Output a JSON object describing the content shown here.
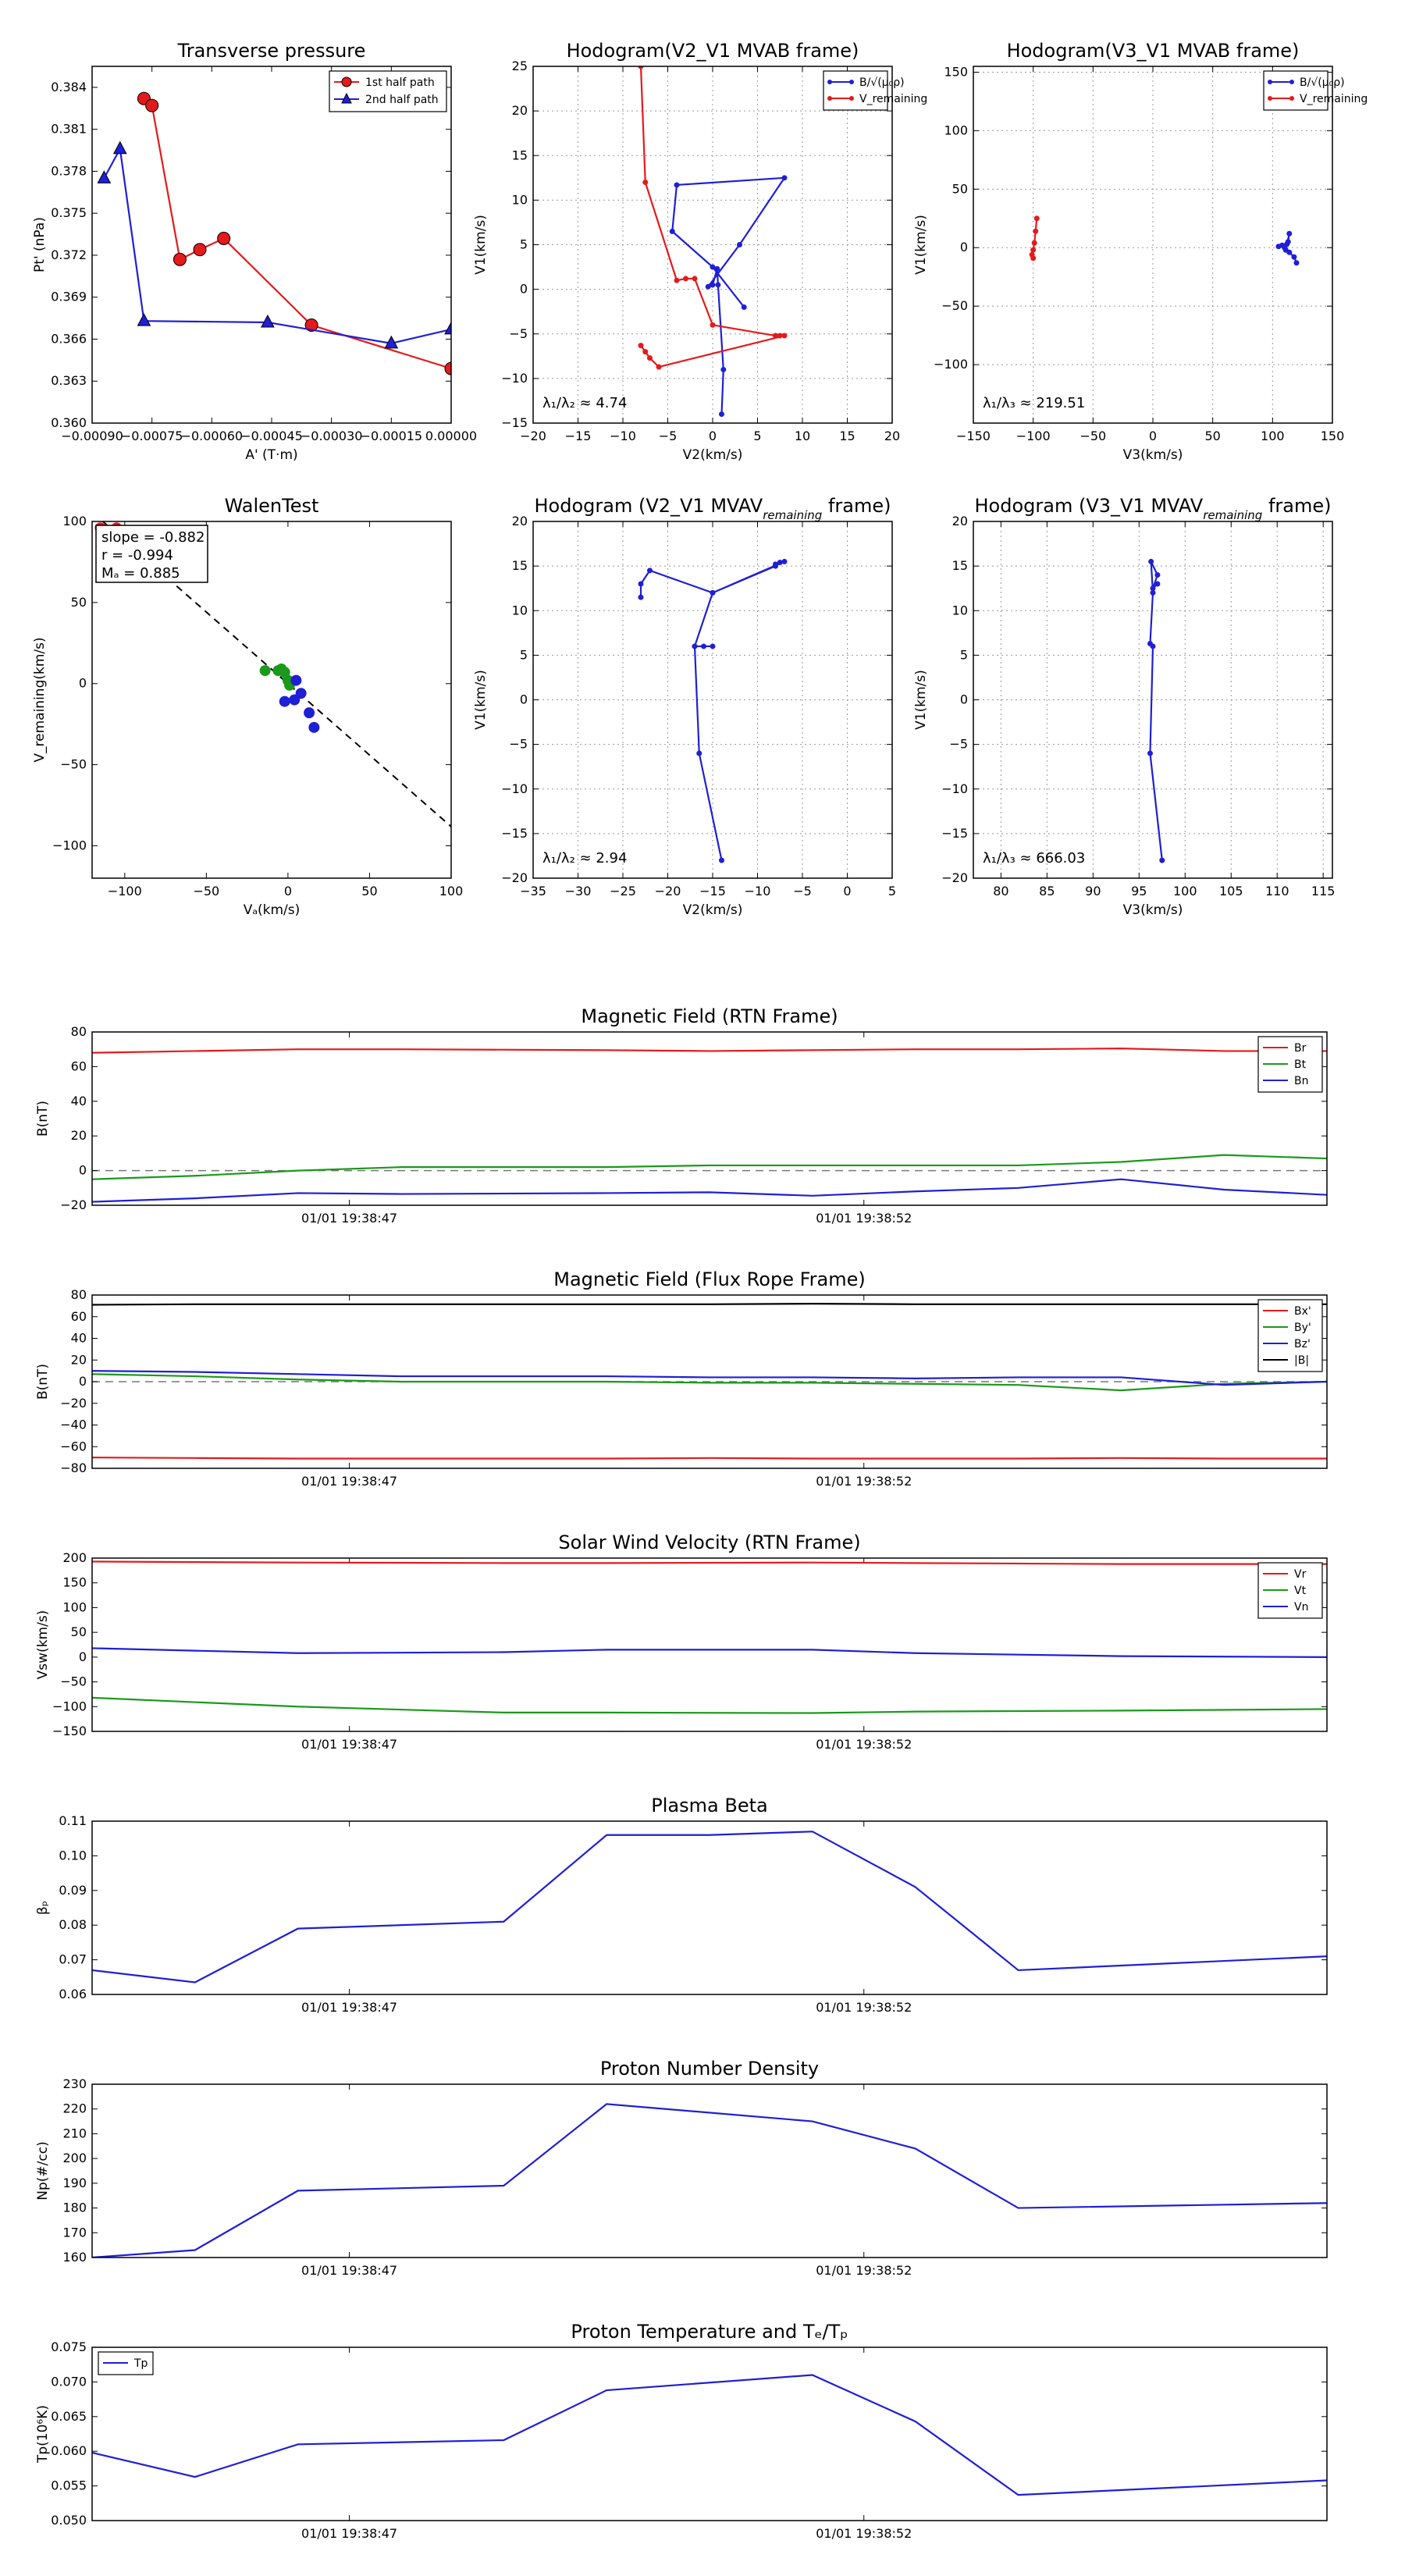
{
  "colors": {
    "red": "#e41a1c",
    "green": "#1a9a1a",
    "blue": "#1f1fd6",
    "black": "#000000",
    "gray": "#888888"
  },
  "chart_data": [
    {
      "type": "line",
      "title": "Transverse pressure",
      "xlabel": "A' (T·m)",
      "ylabel": "Pt' (nPa)",
      "xlim": [
        -0.0009,
        0.0
      ],
      "ylim": [
        0.36,
        0.3855
      ],
      "xticks": [
        -0.0009,
        -0.00075,
        -0.0006,
        -0.00045,
        -0.0003,
        -0.00015,
        0.0
      ],
      "xticklabels": [
        "−0.00090",
        "−0.00075",
        "−0.00060",
        "−0.00045",
        "−0.00030",
        "−0.00015",
        "0.00000"
      ],
      "yticks": [
        0.36,
        0.363,
        0.366,
        0.369,
        0.372,
        0.375,
        0.378,
        0.381,
        0.384
      ],
      "yticklabels": [
        "0.360",
        "0.363",
        "0.366",
        "0.369",
        "0.372",
        "0.375",
        "0.378",
        "0.381",
        "0.384"
      ],
      "grid": false,
      "legend": "upper right",
      "series": [
        {
          "name": "1st half path",
          "marker": "circle",
          "color": "red",
          "x": [
            -0.00077,
            -0.00075,
            -0.00068,
            -0.00063,
            -0.00057,
            -0.00035,
            0.0
          ],
          "y": [
            0.3832,
            0.3827,
            0.3717,
            0.3724,
            0.3732,
            0.367,
            0.3639
          ]
        },
        {
          "name": "2nd half path",
          "marker": "triangle",
          "color": "blue",
          "x": [
            -0.00087,
            -0.00083,
            -0.00077,
            -0.00046,
            -0.00015,
            0.0
          ],
          "y": [
            0.3775,
            0.3796,
            0.3673,
            0.3672,
            0.3657,
            0.3667
          ]
        }
      ]
    },
    {
      "type": "line",
      "title": "Hodogram(V2_V1 MVAB frame)",
      "xlabel": "V2(km/s)",
      "ylabel": "V1(km/s)",
      "xlim": [
        -20,
        20
      ],
      "ylim": [
        -15,
        25
      ],
      "xticks": [
        -20,
        -15,
        -10,
        -5,
        0,
        5,
        10,
        15,
        20
      ],
      "yticks": [
        -15,
        -10,
        -5,
        0,
        5,
        10,
        15,
        20,
        25
      ],
      "grid": true,
      "legend": "upper right",
      "annotation": "λ₁/λ₂ ≈ 4.74",
      "series": [
        {
          "name": "B/√(μ₀ρ)",
          "color": "blue",
          "x": [
            1,
            1.2,
            0.6,
            0.5,
            0,
            -0.5,
            3,
            8,
            -4,
            -4.5,
            0,
            3.5
          ],
          "y": [
            -14,
            -9,
            0.5,
            2.3,
            0.5,
            0.3,
            5,
            12.5,
            11.7,
            6.5,
            2.5,
            -2
          ]
        },
        {
          "name": "V_remaining",
          "color": "red",
          "x": [
            -8,
            -7.5,
            -4,
            -3,
            -2,
            0,
            7,
            7.5,
            8,
            -6,
            -7,
            -7.5,
            -8
          ],
          "y": [
            25,
            12,
            1,
            1.2,
            1.2,
            -4,
            -5.2,
            -5.2,
            -5.2,
            -8.7,
            -7.7,
            -7,
            -6.3
          ]
        }
      ]
    },
    {
      "type": "line",
      "title": "Hodogram(V3_V1 MVAB frame)",
      "xlabel": "V3(km/s)",
      "ylabel": "V1(km/s)",
      "xlim": [
        -150,
        150
      ],
      "ylim": [
        -150,
        155
      ],
      "xticks": [
        -150,
        -100,
        -50,
        0,
        50,
        100,
        150
      ],
      "yticks": [
        -100,
        -50,
        0,
        50,
        100,
        150
      ],
      "grid": true,
      "legend": "upper right",
      "annotation": "λ₁/λ₃ ≈ 219.51",
      "series": [
        {
          "name": "B/√(μ₀ρ)",
          "color": "blue",
          "x": [
            105,
            108,
            110,
            112,
            114,
            113,
            111,
            114,
            118,
            120
          ],
          "y": [
            1,
            2,
            0,
            3,
            12,
            5,
            -2,
            -4,
            -8,
            -13
          ]
        },
        {
          "name": "V_remaining",
          "color": "red",
          "x": [
            -97,
            -98,
            -99,
            -100,
            -101,
            -100
          ],
          "y": [
            25,
            14,
            4,
            -2,
            -6,
            -9
          ]
        }
      ]
    },
    {
      "type": "scatter",
      "title": "WalenTest",
      "xlabel": "Vₐ(km/s)",
      "ylabel": "V_remaining(km/s)",
      "xlim": [
        -120,
        100
      ],
      "ylim": [
        -120,
        100
      ],
      "xticks": [
        -100,
        -50,
        0,
        50,
        100
      ],
      "yticks": [
        -100,
        -50,
        0,
        50,
        100
      ],
      "grid": false,
      "annotations": [
        "slope = -0.882",
        "r = -0.994",
        "Mₐ = 0.885"
      ],
      "fit_line": {
        "slope": -0.882,
        "x": [
          -120,
          100
        ]
      },
      "series": [
        {
          "name": "red",
          "color": "red",
          "x": [
            -115,
            -110,
            -105,
            -100,
            -108,
            -112
          ],
          "y": [
            96,
            93,
            96,
            93,
            90,
            95
          ]
        },
        {
          "name": "green",
          "color": "green",
          "x": [
            -14,
            -6,
            -2,
            0,
            1,
            -4
          ],
          "y": [
            8,
            8,
            7,
            2,
            -1,
            9
          ]
        },
        {
          "name": "blue",
          "color": "blue",
          "x": [
            -2,
            5,
            8,
            13,
            16,
            4
          ],
          "y": [
            -11,
            2,
            -6,
            -18,
            -27,
            -10
          ]
        }
      ]
    },
    {
      "type": "line",
      "title": "Hodogram (V2_V1 MVAV",
      "title_sub": "remaining",
      "title_tail": " frame)",
      "xlabel": "V2(km/s)",
      "ylabel": "V1(km/s)",
      "xlim": [
        -35,
        5
      ],
      "ylim": [
        -20,
        20
      ],
      "xticks": [
        -35,
        -30,
        -25,
        -20,
        -15,
        -10,
        -5,
        0,
        5
      ],
      "yticks": [
        -20,
        -15,
        -10,
        -5,
        0,
        5,
        10,
        15,
        20
      ],
      "grid": true,
      "annotation": "λ₁/λ₂ ≈ 2.94",
      "series": [
        {
          "name": "V",
          "color": "blue",
          "x": [
            -14,
            -16.5,
            -17,
            -16,
            -15,
            -17,
            -15,
            -8,
            -8,
            -7.5,
            -7,
            -15,
            -22,
            -23,
            -23
          ],
          "y": [
            -18,
            -6,
            6,
            6,
            6,
            6,
            12,
            15,
            15.2,
            15.4,
            15.5,
            12,
            14.5,
            13,
            11.5
          ]
        }
      ]
    },
    {
      "type": "line",
      "title": "Hodogram (V3_V1 MVAV",
      "title_sub": "remaining",
      "title_tail": " frame)",
      "xlabel": "V3(km/s)",
      "ylabel": "V1(km/s)",
      "xlim": [
        77,
        116
      ],
      "ylim": [
        -20,
        20
      ],
      "xticks": [
        80,
        85,
        90,
        95,
        100,
        105,
        110,
        115
      ],
      "yticks": [
        -20,
        -15,
        -10,
        -5,
        0,
        5,
        10,
        15,
        20
      ],
      "grid": true,
      "annotation": "λ₁/λ₃ ≈ 666.03",
      "series": [
        {
          "name": "V",
          "color": "blue",
          "x": [
            97.5,
            96.2,
            96.5,
            96.2,
            96.5,
            96.3,
            97,
            96.5,
            97
          ],
          "y": [
            -18,
            -6,
            6,
            6.3,
            12,
            15.5,
            14,
            12.5,
            13
          ]
        }
      ]
    },
    {
      "type": "line",
      "title": "Magnetic Field (RTN Frame)",
      "ylabel": "B(nT)",
      "ylim": [
        -20,
        80
      ],
      "yticks": [
        -20,
        0,
        20,
        40,
        60,
        80
      ],
      "xticks": [
        1,
        6
      ],
      "xticklabels": [
        "01/01 19:38:47",
        "01/01 19:38:52"
      ],
      "xlim": [
        -1.5,
        10.5
      ],
      "zero_line": true,
      "legend": "upper right",
      "x": [
        -1.5,
        -0.5,
        0.5,
        1.5,
        3.5,
        4.5,
        5.5,
        6.5,
        7.5,
        8.5,
        9.5,
        10.5
      ],
      "series": [
        {
          "name": "Br",
          "color": "red",
          "values": [
            68,
            69,
            70,
            70,
            69.5,
            69,
            69.5,
            70,
            70,
            70.5,
            69,
            69
          ]
        },
        {
          "name": "Bt",
          "color": "green",
          "values": [
            -5,
            -3,
            0,
            2,
            2,
            3,
            3,
            3,
            3,
            5,
            9,
            7
          ]
        },
        {
          "name": "Bn",
          "color": "blue",
          "values": [
            -18,
            -16,
            -13,
            -13.5,
            -13,
            -12.5,
            -14.5,
            -12,
            -10,
            -5,
            -11,
            -14
          ]
        }
      ]
    },
    {
      "type": "line",
      "title": "Magnetic Field (Flux Rope Frame)",
      "ylabel": "B(nT)",
      "ylim": [
        -80,
        80
      ],
      "yticks": [
        -80,
        -60,
        -40,
        -20,
        0,
        20,
        40,
        60,
        80
      ],
      "xticks": [
        1,
        6
      ],
      "xticklabels": [
        "01/01 19:38:47",
        "01/01 19:38:52"
      ],
      "xlim": [
        -1.5,
        10.5
      ],
      "zero_line": true,
      "legend": "upper right",
      "x": [
        -1.5,
        -0.5,
        0.5,
        1.5,
        3.5,
        4.5,
        5.5,
        6.5,
        7.5,
        8.5,
        9.5,
        10.5
      ],
      "series": [
        {
          "name": "Bx'",
          "color": "red",
          "values": [
            -70,
            -70.5,
            -71,
            -71,
            -71,
            -70.5,
            -71,
            -71,
            -71,
            -70.5,
            -71,
            -71
          ]
        },
        {
          "name": "By'",
          "color": "green",
          "values": [
            7,
            5,
            2,
            0,
            0,
            -1,
            -1,
            -2,
            -3,
            -8,
            -2,
            0
          ]
        },
        {
          "name": "Bz'",
          "color": "blue",
          "values": [
            10,
            9,
            7,
            5,
            5,
            4,
            4,
            3,
            4,
            4,
            -3,
            0
          ]
        },
        {
          "name": "|B|",
          "color": "black",
          "values": [
            71,
            71.5,
            71.5,
            71.5,
            71.5,
            71.5,
            72,
            71.5,
            71.5,
            71.5,
            71.5,
            71.5
          ]
        }
      ]
    },
    {
      "type": "line",
      "title": "Solar Wind Velocity (RTN Frame)",
      "ylabel": "Vsw(km/s)",
      "ylim": [
        -150,
        200
      ],
      "yticks": [
        -150,
        -100,
        -50,
        0,
        50,
        100,
        150,
        200
      ],
      "xticks": [
        1,
        6
      ],
      "xticklabels": [
        "01/01 19:38:47",
        "01/01 19:38:52"
      ],
      "xlim": [
        -1.5,
        10.5
      ],
      "legend": "upper right",
      "x": [
        -1.5,
        0.5,
        2.5,
        3.5,
        5.5,
        6.5,
        8.5,
        10.5
      ],
      "series": [
        {
          "name": "Vr",
          "color": "red",
          "values": [
            193,
            191,
            190,
            190,
            191,
            190,
            188,
            188
          ]
        },
        {
          "name": "Vt",
          "color": "green",
          "values": [
            -82,
            -100,
            -112,
            -112,
            -113,
            -110,
            -108,
            -105
          ]
        },
        {
          "name": "Vn",
          "color": "blue",
          "values": [
            18,
            8,
            10,
            15,
            15,
            8,
            2,
            0
          ]
        }
      ]
    },
    {
      "type": "line",
      "title": "Plasma Beta",
      "ylabel": "βₚ",
      "ylim": [
        0.06,
        0.11
      ],
      "yticks": [
        0.06,
        0.07,
        0.08,
        0.09,
        0.1,
        0.11
      ],
      "yticklabels": [
        "0.06",
        "0.07",
        "0.08",
        "0.09",
        "0.10",
        "0.11"
      ],
      "xticks": [
        1,
        6
      ],
      "xticklabels": [
        "01/01 19:38:47",
        "01/01 19:38:52"
      ],
      "xlim": [
        -1.5,
        10.5
      ],
      "x": [
        -1.5,
        -0.5,
        0.5,
        2.5,
        3.5,
        4.5,
        5.5,
        6.5,
        7.5,
        10.5
      ],
      "series": [
        {
          "name": "beta",
          "color": "blue",
          "values": [
            0.067,
            0.0635,
            0.079,
            0.081,
            0.106,
            0.106,
            0.107,
            0.091,
            0.067,
            0.071
          ]
        }
      ]
    },
    {
      "type": "line",
      "title": "Proton Number Density",
      "ylabel": "Np(#/cc)",
      "ylim": [
        160,
        230
      ],
      "yticks": [
        160,
        170,
        180,
        190,
        200,
        210,
        220,
        230
      ],
      "xticks": [
        1,
        6
      ],
      "xticklabels": [
        "01/01 19:38:47",
        "01/01 19:38:52"
      ],
      "xlim": [
        -1.5,
        10.5
      ],
      "x": [
        -1.5,
        -0.5,
        0.5,
        2.5,
        3.5,
        5.5,
        6.5,
        7.5,
        10.5
      ],
      "series": [
        {
          "name": "Np",
          "color": "blue",
          "values": [
            160,
            163,
            187,
            189,
            222,
            215,
            204,
            180,
            182
          ]
        }
      ]
    },
    {
      "type": "line",
      "title": "Proton Temperature and Tₑ/Tₚ",
      "ylabel": "Tp(10⁶K)",
      "ylim": [
        0.05,
        0.075
      ],
      "yticks": [
        0.05,
        0.055,
        0.06,
        0.065,
        0.07,
        0.075
      ],
      "yticklabels": [
        "0.050",
        "0.055",
        "0.060",
        "0.065",
        "0.070",
        "0.075"
      ],
      "xticks": [
        1,
        6
      ],
      "xticklabels": [
        "01/01 19:38:47",
        "01/01 19:38:52"
      ],
      "xlim": [
        -1.5,
        10.5
      ],
      "legend": "upper left",
      "x": [
        -1.5,
        -0.5,
        0.5,
        2.5,
        3.5,
        5.5,
        6.5,
        7.5,
        10.5
      ],
      "series": [
        {
          "name": "Tp",
          "color": "blue",
          "values": [
            0.0598,
            0.0563,
            0.061,
            0.0616,
            0.0688,
            0.071,
            0.0643,
            0.0537,
            0.0558
          ]
        }
      ]
    }
  ]
}
